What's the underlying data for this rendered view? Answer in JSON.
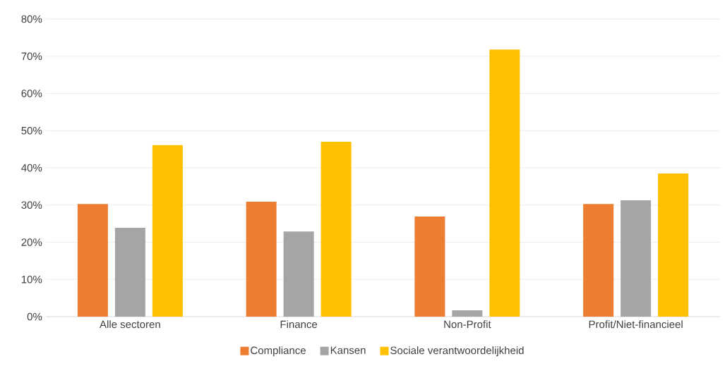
{
  "chart_data": {
    "type": "bar",
    "categories": [
      "Alle sectoren",
      "Finance",
      "Non-Profit",
      "Profit/Niet-financieel"
    ],
    "series": [
      {
        "name": "Compliance",
        "color": "#ed7d31",
        "values": [
          30.3,
          30.9,
          26.9,
          30.3
        ]
      },
      {
        "name": "Kansen",
        "color": "#a5a5a5",
        "values": [
          23.9,
          22.9,
          1.7,
          31.3
        ]
      },
      {
        "name": "Sociale verantwoordelijkheid",
        "color": "#ffc000",
        "values": [
          46.1,
          47.0,
          71.8,
          38.5
        ]
      }
    ],
    "ylim": [
      0,
      80
    ],
    "yticks": [
      {
        "value": 0,
        "label": "0%"
      },
      {
        "value": 10,
        "label": "10%"
      },
      {
        "value": 20,
        "label": "20%"
      },
      {
        "value": 30,
        "label": "30%"
      },
      {
        "value": 40,
        "label": "40%"
      },
      {
        "value": 50,
        "label": "50%"
      },
      {
        "value": 60,
        "label": "60%"
      },
      {
        "value": 70,
        "label": "70%"
      },
      {
        "value": 80,
        "label": "80%"
      }
    ],
    "grid": "y",
    "legend": "bottom"
  }
}
